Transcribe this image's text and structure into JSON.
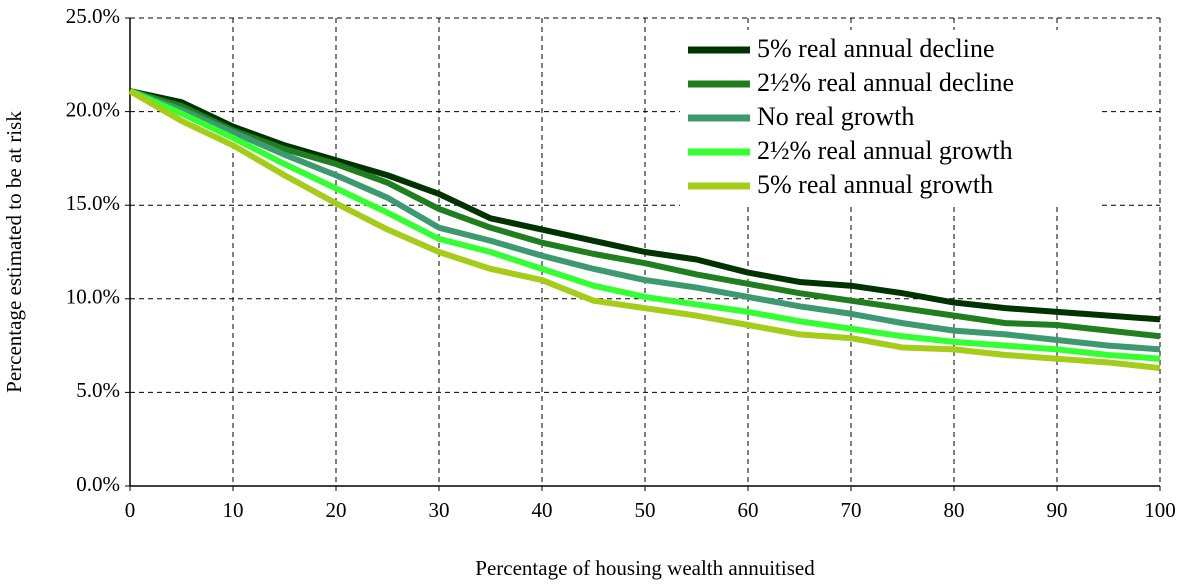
{
  "chart_data": {
    "type": "line",
    "x_label": "Percentage of housing wealth annuitised",
    "y_label": "Percentage estimated to be at risk",
    "x": [
      0,
      5,
      10,
      15,
      20,
      25,
      30,
      35,
      40,
      45,
      50,
      55,
      60,
      65,
      70,
      75,
      80,
      85,
      90,
      95,
      100
    ],
    "series": [
      {
        "name": "5% real annual decline",
        "color": "#003300",
        "values": [
          21.1,
          20.5,
          19.2,
          18.2,
          17.4,
          16.6,
          15.6,
          14.3,
          13.7,
          13.1,
          12.5,
          12.1,
          11.4,
          10.9,
          10.7,
          10.3,
          9.8,
          9.5,
          9.3,
          9.1,
          8.9
        ]
      },
      {
        "name": "2½% real annual decline",
        "color": "#1f7f1f",
        "values": [
          21.1,
          20.3,
          19.0,
          18.0,
          17.2,
          16.2,
          14.8,
          13.8,
          13.0,
          12.4,
          11.9,
          11.3,
          10.8,
          10.3,
          9.9,
          9.5,
          9.1,
          8.7,
          8.6,
          8.3,
          8.0
        ]
      },
      {
        "name": "No real growth",
        "color": "#3d9970",
        "values": [
          21.1,
          20.1,
          18.9,
          17.7,
          16.6,
          15.4,
          13.8,
          13.1,
          12.3,
          11.6,
          11.0,
          10.6,
          10.1,
          9.6,
          9.2,
          8.7,
          8.3,
          8.1,
          7.8,
          7.5,
          7.3
        ]
      },
      {
        "name": "2½% real annual growth",
        "color": "#33ff33",
        "values": [
          21.1,
          19.9,
          18.6,
          17.2,
          15.9,
          14.6,
          13.2,
          12.5,
          11.6,
          10.7,
          10.1,
          9.7,
          9.3,
          8.8,
          8.4,
          8.0,
          7.7,
          7.5,
          7.3,
          7.0,
          6.8
        ]
      },
      {
        "name": "5% real annual growth",
        "color": "#a6cc1a",
        "values": [
          21.1,
          19.5,
          18.2,
          16.6,
          15.1,
          13.7,
          12.5,
          11.6,
          11.0,
          9.9,
          9.5,
          9.1,
          8.6,
          8.1,
          7.9,
          7.4,
          7.3,
          7.0,
          6.8,
          6.6,
          6.3
        ]
      }
    ],
    "xlim": [
      0,
      100
    ],
    "xticks": [
      0,
      10,
      20,
      30,
      40,
      50,
      60,
      70,
      80,
      90,
      100
    ],
    "ylim": [
      0,
      25
    ],
    "yticks": [
      {
        "value": 0,
        "label": "0.0%"
      },
      {
        "value": 5,
        "label": "5.0%"
      },
      {
        "value": 10,
        "label": "10.0%"
      },
      {
        "value": 15,
        "label": "15.0%"
      },
      {
        "value": 20,
        "label": "20.0%"
      },
      {
        "value": 25,
        "label": "25.0%"
      }
    ],
    "grid": true,
    "legend": "upper right"
  }
}
